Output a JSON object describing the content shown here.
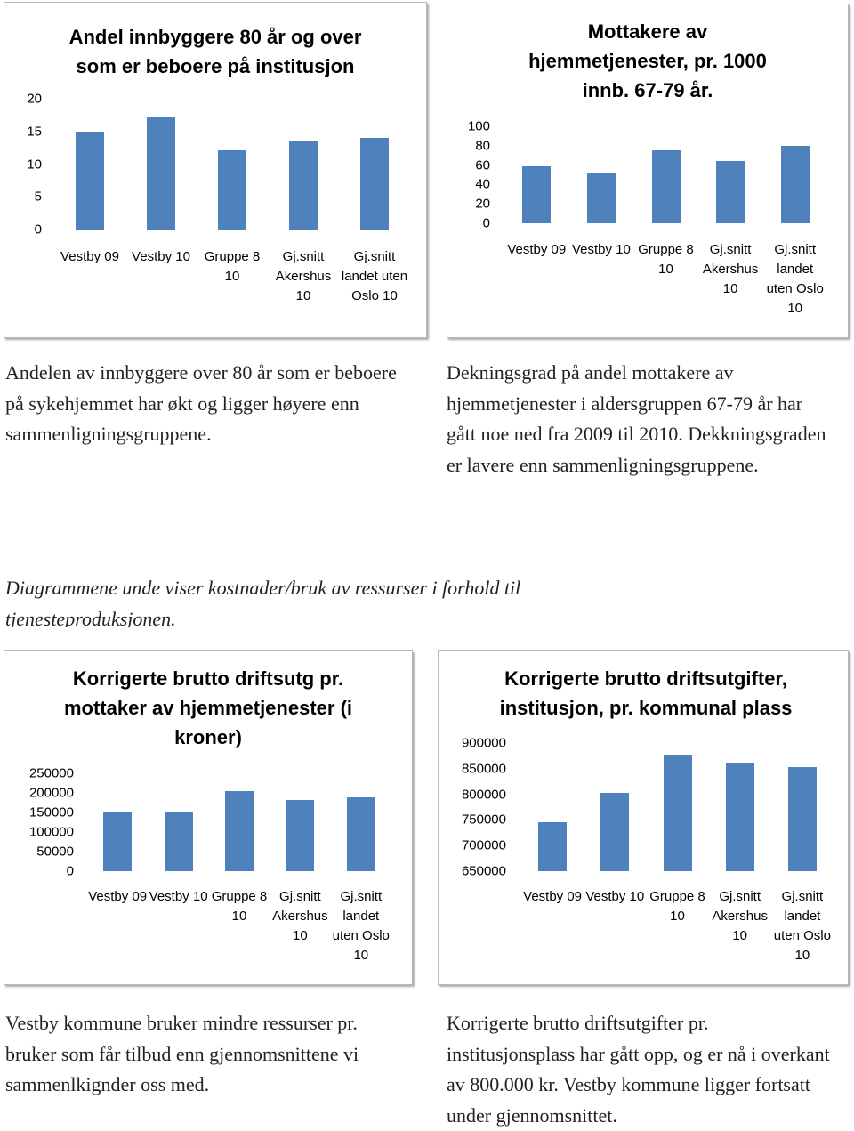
{
  "chart_data": [
    {
      "type": "bar",
      "title": "Andel innbyggere 80 år og over som er beboere på institusjon",
      "categories": [
        "Vestby 09",
        "Vestby 10",
        "Gruppe 8 10",
        "Gj.snitt Akershus 10",
        "Gj.snitt landet uten Oslo 10"
      ],
      "values": [
        15,
        17.3,
        12.1,
        13.6,
        14
      ],
      "color": "#4f81bd",
      "ylim": [
        0,
        20
      ],
      "yticks": [
        0,
        5,
        10,
        15,
        20
      ]
    },
    {
      "type": "bar",
      "title": "Mottakere av hjemmetjenester, pr. 1000 innb. 67-79 år.",
      "categories": [
        "Vestby 09",
        "Vestby 10",
        "Gruppe 8 10",
        "Gj.snitt Akershus 10",
        "Gj.snitt landet uten Oslo 10"
      ],
      "values": [
        59,
        52,
        75,
        64,
        80
      ],
      "color": "#4f81bd",
      "ylim": [
        0,
        100
      ],
      "yticks": [
        0,
        20,
        40,
        60,
        80,
        100
      ]
    },
    {
      "type": "bar",
      "title": "Korrigerte brutto driftsutg pr. mottaker av hjemmetjenester (i kroner)",
      "categories": [
        "Vestby 09",
        "Vestby 10",
        "Gruppe 8 10",
        "Gj.snitt Akershus 10",
        "Gj.snitt landet uten Oslo 10"
      ],
      "values": [
        152000,
        149000,
        204000,
        182000,
        189000
      ],
      "color": "#4f81bd",
      "ylim": [
        0,
        250000
      ],
      "yticks": [
        0,
        50000,
        100000,
        150000,
        200000,
        250000
      ]
    },
    {
      "type": "bar",
      "title": "Korrigerte brutto driftsutgifter, institusjon, pr. kommunal plass",
      "categories": [
        "Vestby 09",
        "Vestby 10",
        "Gruppe 8 10",
        "Gj.snitt Akershus 10",
        "Gj.snitt landet uten Oslo 10"
      ],
      "values": [
        745000,
        802000,
        875000,
        860000,
        853000
      ],
      "color": "#4f81bd",
      "ylim": [
        650000,
        900000
      ],
      "yticks": [
        650000,
        700000,
        750000,
        800000,
        850000,
        900000
      ]
    }
  ],
  "texts": {
    "p1": "Andelen av innbyggere over 80 år som er beboere på sykehjemmet har økt og ligger høyere enn sammenligningsgruppene.",
    "p2": "Dekningsgrad på andel mottakere av hjemmetjenester i aldersgruppen 67-79 år har gått noe ned fra 2009 til 2010. Dekkningsgraden er lavere enn sammenligningsgruppene.",
    "intro": "Diagrammene unde viser kostnader/bruk av ressurser i forhold til tjenesteproduksjonen.",
    "p3": "Vestby kommune  bruker mindre ressurser pr. bruker som får tilbud enn gjennomsnittene vi sammenlkignder oss med.",
    "p4": "Korrigerte brutto driftsutgifter pr. institusjonsplass har gått opp, og er nå i overkant av 800.000 kr. Vestby kommune ligger fortsatt under gjennomsnittet."
  }
}
